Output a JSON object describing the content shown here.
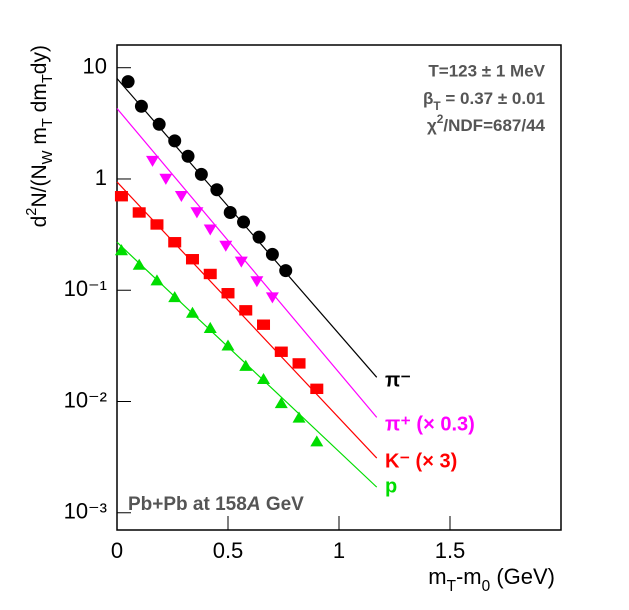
{
  "chart_data": {
    "type": "scatter",
    "ylabel": [
      "d",
      "2",
      "N/(N",
      "W",
      " m",
      "T",
      " dm",
      "T",
      "dy)"
    ],
    "xlabel": [
      "m",
      "T",
      "-m",
      "0",
      " (GeV)"
    ],
    "annotations": {
      "temperature": "T=123 ± 1 MeV",
      "beta": [
        "β",
        "T",
        " = 0.37 ±  0.01"
      ],
      "chi2": [
        "χ",
        "2",
        "/NDF=687/44"
      ],
      "system": [
        "Pb+Pb at 158",
        "A",
        " GeV"
      ]
    },
    "xlim": [
      0,
      2
    ],
    "xticks": [
      0,
      0.5,
      1,
      1.5
    ],
    "ylim": [
      0.0007,
      16
    ],
    "log_y": true,
    "yticks": [
      {
        "value": 0.001,
        "label": "10⁻³"
      },
      {
        "value": 0.01,
        "label": "10⁻²"
      },
      {
        "value": 0.1,
        "label": "10⁻¹"
      },
      1,
      10
    ],
    "series": [
      {
        "name": "π⁻",
        "color": "#000000",
        "marker": "circle",
        "x": [
          0.05,
          0.11,
          0.19,
          0.26,
          0.32,
          0.38,
          0.45,
          0.51,
          0.57,
          0.64,
          0.7,
          0.76
        ],
        "values": [
          7.5,
          4.5,
          3.1,
          2.2,
          1.6,
          1.1,
          0.8,
          0.5,
          0.41,
          0.3,
          0.21,
          0.15
        ],
        "fit_x": [
          0,
          1.17
        ],
        "fit_values": [
          8,
          0.0165
        ]
      },
      {
        "name": "π⁺ (× 0.3)",
        "color": "#ff00ff",
        "marker": "triangle-down",
        "x": [
          0.16,
          0.22,
          0.29,
          0.36,
          0.42,
          0.49,
          0.56,
          0.63,
          0.7
        ],
        "values": [
          1.45,
          1.0,
          0.7,
          0.5,
          0.35,
          0.25,
          0.18,
          0.12,
          0.086
        ],
        "fit_x": [
          0,
          1.17
        ],
        "fit_values": [
          4.3,
          0.0072
        ]
      },
      {
        "name": "K⁻ (× 3)",
        "color": "#ff0000",
        "marker": "square",
        "x": [
          0.02,
          0.1,
          0.18,
          0.26,
          0.34,
          0.42,
          0.5,
          0.58,
          0.66,
          0.74,
          0.82,
          0.9
        ],
        "values": [
          0.7,
          0.5,
          0.39,
          0.27,
          0.19,
          0.14,
          0.094,
          0.066,
          0.049,
          0.028,
          0.022,
          0.013
        ],
        "fit_x": [
          0,
          1.17
        ],
        "fit_values": [
          0.94,
          0.0031
        ]
      },
      {
        "name": "p",
        "color": "#00dd00",
        "marker": "triangle-up",
        "x": [
          0.02,
          0.1,
          0.18,
          0.26,
          0.34,
          0.42,
          0.5,
          0.58,
          0.66,
          0.74,
          0.82,
          0.9
        ],
        "values": [
          0.23,
          0.17,
          0.123,
          0.087,
          0.063,
          0.046,
          0.032,
          0.021,
          0.016,
          0.0097,
          0.0072,
          0.0044
        ],
        "fit_x": [
          0,
          1.17
        ],
        "fit_values": [
          0.27,
          0.0017
        ]
      }
    ]
  }
}
